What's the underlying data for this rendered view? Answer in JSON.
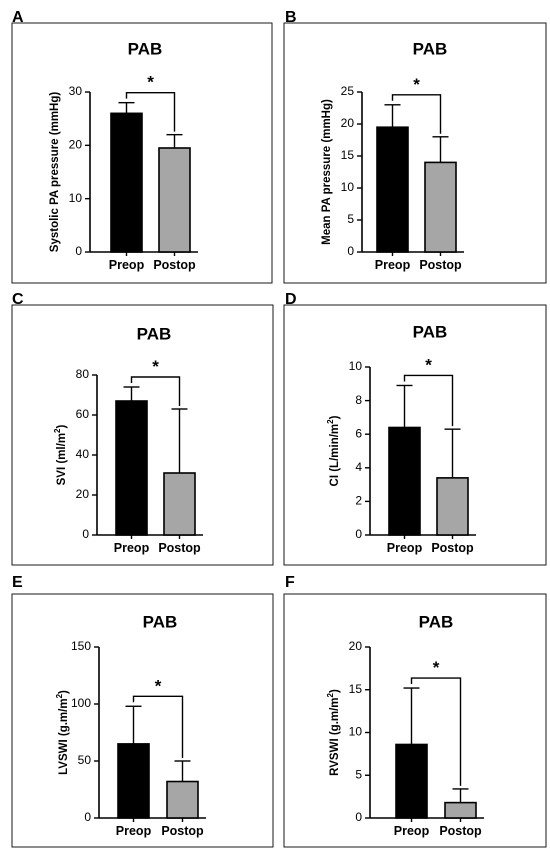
{
  "chart_data": [
    {
      "panel": "A",
      "type": "bar",
      "title": "PAB",
      "ylabel": "Systolic PA pressure (mmHg)",
      "categories": [
        "Preop",
        "Postop"
      ],
      "values": [
        26,
        19.5
      ],
      "errors": [
        2,
        2.5
      ],
      "bar_colors": [
        "#000000",
        "#a6a6a6"
      ],
      "ylim": [
        0,
        30
      ],
      "yticks": [
        "0",
        "10",
        "20",
        "30"
      ],
      "significance": "*"
    },
    {
      "panel": "B",
      "type": "bar",
      "title": "PAB",
      "ylabel": "Mean PA pressure (mmHg)",
      "categories": [
        "Preop",
        "Postop"
      ],
      "values": [
        19.5,
        14
      ],
      "errors": [
        3.5,
        4
      ],
      "bar_colors": [
        "#000000",
        "#a6a6a6"
      ],
      "ylim": [
        0,
        25
      ],
      "yticks": [
        "0",
        "5",
        "10",
        "15",
        "20",
        "25"
      ],
      "significance": "*"
    },
    {
      "panel": "C",
      "type": "bar",
      "title": "PAB",
      "ylabel": "SVI (ml/m",
      "ylabel_sup": "2",
      "ylabel_end": ")",
      "categories": [
        "Preop",
        "Postop"
      ],
      "values": [
        67,
        31
      ],
      "errors": [
        7,
        32
      ],
      "bar_colors": [
        "#000000",
        "#a6a6a6"
      ],
      "ylim": [
        0,
        80
      ],
      "yticks": [
        "0",
        "20",
        "40",
        "60",
        "80"
      ],
      "significance": "*"
    },
    {
      "panel": "D",
      "type": "bar",
      "title": "PAB",
      "ylabel": "CI (L/min/m",
      "ylabel_sup": "2",
      "ylabel_end": ")",
      "categories": [
        "Preop",
        "Postop"
      ],
      "values": [
        6.4,
        3.4
      ],
      "errors": [
        2.5,
        2.9
      ],
      "bar_colors": [
        "#000000",
        "#a6a6a6"
      ],
      "ylim": [
        0,
        10
      ],
      "yticks": [
        "0",
        "2",
        "4",
        "6",
        "8",
        "10"
      ],
      "significance": "*"
    },
    {
      "panel": "E",
      "type": "bar",
      "title": "PAB",
      "ylabel": "LVSWI (g.m/m",
      "ylabel_sup": "2",
      "ylabel_end": ")",
      "categories": [
        "Preop",
        "Postop"
      ],
      "values": [
        65,
        32
      ],
      "errors": [
        33,
        18
      ],
      "bar_colors": [
        "#000000",
        "#a6a6a6"
      ],
      "ylim": [
        0,
        150
      ],
      "yticks": [
        "0",
        "50",
        "100",
        "150"
      ],
      "significance": "*"
    },
    {
      "panel": "F",
      "type": "bar",
      "title": "PAB",
      "ylabel": "RVSWI (g.m/m",
      "ylabel_sup": "2",
      "ylabel_end": ")",
      "categories": [
        "Preop",
        "Postop"
      ],
      "values": [
        8.6,
        1.8
      ],
      "errors": [
        6.6,
        1.6
      ],
      "bar_colors": [
        "#000000",
        "#a6a6a6"
      ],
      "ylim": [
        0,
        20
      ],
      "yticks": [
        "0",
        "5",
        "10",
        "15",
        "20"
      ],
      "significance": "*"
    }
  ]
}
